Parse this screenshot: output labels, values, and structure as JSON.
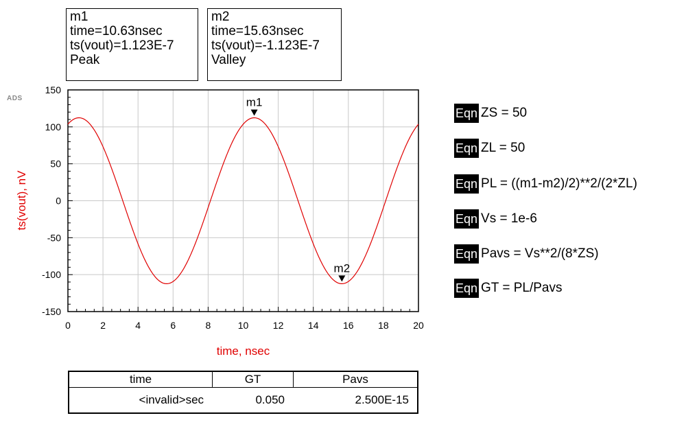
{
  "markers": [
    {
      "name": "m1",
      "time": "time=10.63nsec",
      "value": "ts(vout)=1.123E-7",
      "kind": "Peak",
      "x": 10.63,
      "y": 112.3
    },
    {
      "name": "m2",
      "time": "time=15.63nsec",
      "value": "ts(vout)=-1.123E-7",
      "kind": "Valley",
      "x": 15.63,
      "y": -112.3
    }
  ],
  "logo": "ADS",
  "equations": [
    {
      "tag": "Eqn",
      "text": "ZS = 50"
    },
    {
      "tag": "Eqn",
      "text": "ZL = 50"
    },
    {
      "tag": "Eqn",
      "text": "PL = ((m1-m2)/2)**2/(2*ZL)"
    },
    {
      "tag": "Eqn",
      "text": "Vs = 1e-6"
    },
    {
      "tag": "Eqn",
      "text": "Pavs = Vs**2/(8*ZS)"
    },
    {
      "tag": "Eqn",
      "text": "GT = PL/Pavs"
    }
  ],
  "table": {
    "headers": [
      "time",
      "GT",
      "Pavs"
    ],
    "row": [
      "<invalid>sec",
      "0.050",
      "2.500E-15"
    ]
  },
  "chart_data": {
    "type": "line",
    "xlabel": "time, nsec",
    "ylabel": "ts(vout), nV",
    "xlim": [
      0,
      20
    ],
    "ylim": [
      -150,
      150
    ],
    "xticks": [
      0,
      2,
      4,
      6,
      8,
      10,
      12,
      14,
      16,
      18,
      20
    ],
    "yticks": [
      150,
      100,
      50,
      0,
      -50,
      -100,
      -150
    ],
    "grid": true,
    "series": [
      {
        "color": "#e00000",
        "function": "112.3*cos(2*pi*(x-0.63)/10)",
        "x": [
          0,
          0.63,
          1,
          2,
          3,
          4,
          5,
          5.63,
          6,
          7,
          8,
          9,
          10,
          10.63,
          11,
          12,
          13,
          14,
          15,
          15.63,
          16,
          17,
          18,
          19,
          20
        ],
        "y": [
          103.6,
          112.3,
          109.3,
          73.1,
          11.0,
          -53.8,
          -101.4,
          -112.3,
          -109.3,
          -73.1,
          -11.0,
          53.8,
          101.4,
          112.3,
          109.3,
          73.1,
          11.0,
          -53.8,
          -101.4,
          -112.3,
          -109.3,
          -73.1,
          -11.0,
          53.8,
          103.6
        ]
      }
    ]
  }
}
